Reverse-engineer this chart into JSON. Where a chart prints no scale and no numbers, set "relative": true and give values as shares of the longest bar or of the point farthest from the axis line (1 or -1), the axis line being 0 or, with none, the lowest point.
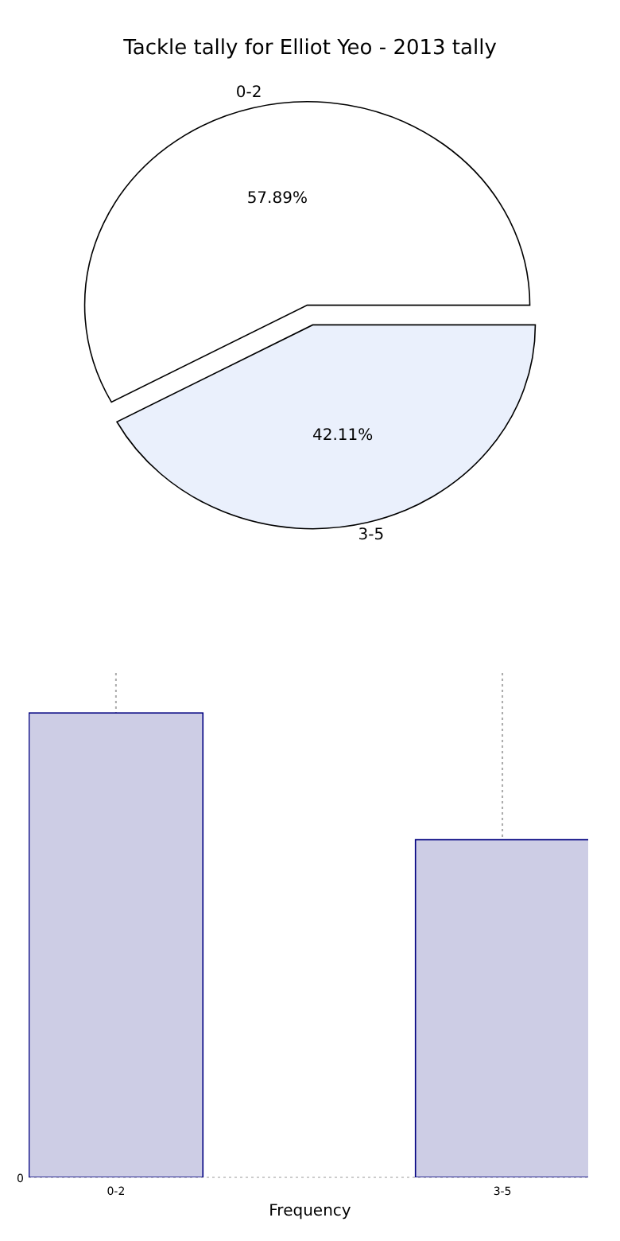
{
  "chart_data": [
    {
      "type": "pie",
      "title": "Tackle tally for Elliot Yeo - 2013 tally",
      "categories": [
        "0-2",
        "3-5"
      ],
      "values": [
        57.89,
        42.11
      ],
      "colors": [
        "#ffffff",
        "#eaf0fc"
      ],
      "value_labels": [
        "57.89%",
        "42.11%"
      ]
    },
    {
      "type": "bar",
      "categories": [
        "0-2",
        "3-5"
      ],
      "values": [
        1,
        0.727
      ],
      "color": "#cdcde5",
      "relative": true,
      "xlabel": "Frequency",
      "grid": "x",
      "annotations": [
        "0"
      ]
    }
  ]
}
